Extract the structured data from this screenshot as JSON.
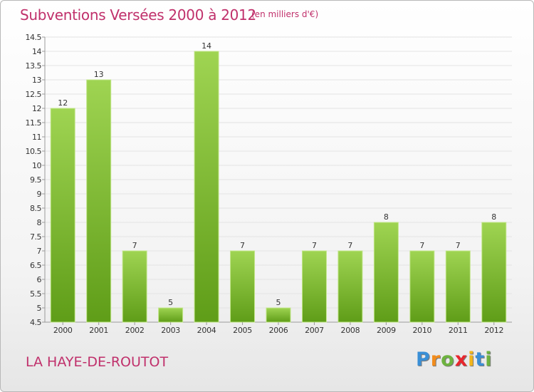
{
  "header": {
    "title": "Subventions Versées 2000 à 2012",
    "subtitle": "(en milliers d'€)"
  },
  "footer": {
    "commune": "LA HAYE-DE-ROUTOT",
    "logo_letters": [
      {
        "ch": "P",
        "color": "#3a8fd6"
      },
      {
        "ch": "r",
        "color": "#f28c1c"
      },
      {
        "ch": "o",
        "color": "#6db33f"
      },
      {
        "ch": "x",
        "color": "#e8262d"
      },
      {
        "ch": "i",
        "color": "#f2b51c"
      },
      {
        "ch": "t",
        "color": "#3a8fd6"
      },
      {
        "ch": "i",
        "color": "#6db33f"
      }
    ]
  },
  "colors": {
    "bar_top": "#9fd452",
    "bar_bottom": "#5f9d18",
    "bar_edge": "#c2e68a",
    "grid": "#e3e3e3",
    "axis": "#9a9a9a",
    "title": "#c0306b",
    "text": "#333333"
  },
  "chart_data": {
    "type": "bar",
    "categories": [
      "2000",
      "2001",
      "2002",
      "2003",
      "2004",
      "2005",
      "2006",
      "2007",
      "2008",
      "2009",
      "2010",
      "2011",
      "2012"
    ],
    "values": [
      12,
      13,
      7,
      5,
      14,
      7,
      5,
      7,
      7,
      8,
      7,
      7,
      8
    ],
    "data_labels": [
      "12",
      "13",
      "7",
      "5",
      "14",
      "7",
      "5",
      "7",
      "7",
      "8",
      "7",
      "7",
      "8"
    ],
    "ylim": [
      4.5,
      14.5
    ],
    "yticks": [
      4.5,
      5,
      5.5,
      6,
      6.5,
      7,
      7.5,
      8,
      8.5,
      9,
      9.5,
      10,
      10.5,
      11,
      11.5,
      12,
      12.5,
      13,
      13.5,
      14,
      14.5
    ],
    "ytick_labels": [
      "4.5",
      "5",
      "5.5",
      "6",
      "6.5",
      "7",
      "7.5",
      "8",
      "8.5",
      "9",
      "9.5",
      "10",
      "10.5",
      "11",
      "11.5",
      "12",
      "12.5",
      "13",
      "13.5",
      "14",
      "14.5"
    ],
    "grid": true,
    "legend": "none",
    "xlabel": "",
    "ylabel": ""
  }
}
